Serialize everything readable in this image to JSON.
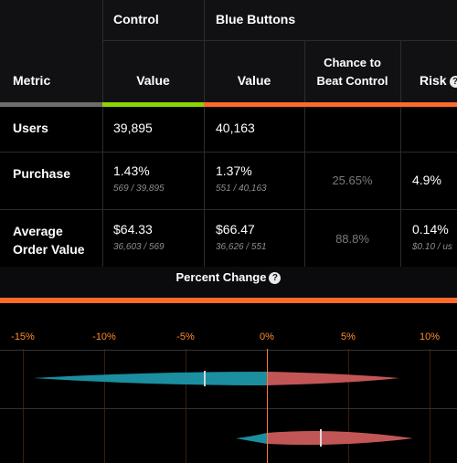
{
  "table": {
    "groups": [
      "Control",
      "Blue Buttons"
    ],
    "header": {
      "metric": "Metric",
      "control_value": "Value",
      "variant_value": "Value",
      "chance": "Chance to\nBeat Control",
      "risk": "Risk"
    },
    "rows": [
      {
        "metric": "Users",
        "control_value": "39,895",
        "control_sub": "",
        "variant_value": "40,163",
        "variant_sub": "",
        "chance": "",
        "risk": "",
        "risk_sub": ""
      },
      {
        "metric": "Purchase",
        "control_value": "1.43%",
        "control_sub": "569 / 39,895",
        "variant_value": "1.37%",
        "variant_sub": "551 / 40,163",
        "chance": "25.65%",
        "risk": "4.9%",
        "risk_sub": ""
      },
      {
        "metric": "Average\nOrder Value",
        "control_value": "$64.33",
        "control_sub": "36,603 / 569",
        "variant_value": "$66.47",
        "variant_sub": "36,626 / 551",
        "chance": "88.8%",
        "risk": "0.14%",
        "risk_sub": "$0.10 / us"
      }
    ]
  },
  "percent_change": {
    "title": "Percent Change",
    "ticks": [
      "-15%",
      "-10%",
      "-5%",
      "0%",
      "5%",
      "10%"
    ]
  },
  "colors": {
    "control_accent": "#8fd400",
    "variant_accent": "#ff6a2a",
    "gain": "#c25656",
    "loss": "#1b8ea0"
  }
}
